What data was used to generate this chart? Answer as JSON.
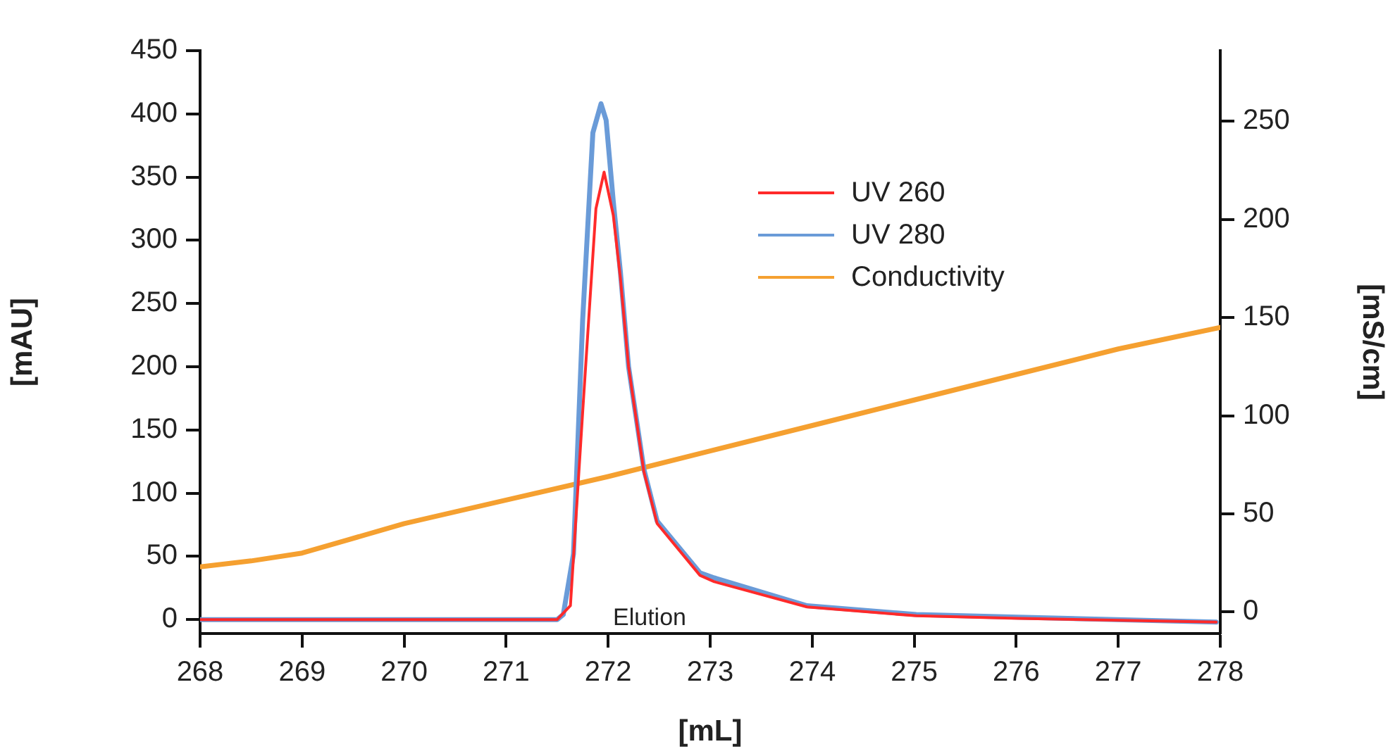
{
  "chart_data": {
    "type": "line",
    "xlabel": "[mL]",
    "ylabel": "[mAU]",
    "y2label": "[mS/cm]",
    "xlim": [
      268,
      278
    ],
    "xticks": [
      268,
      269,
      270,
      271,
      272,
      273,
      274,
      275,
      276,
      277,
      278
    ],
    "ylim": [
      -11,
      450
    ],
    "yticks": [
      0,
      50,
      100,
      150,
      200,
      250,
      300,
      350,
      400,
      450
    ],
    "y2lim": [
      -11,
      286
    ],
    "y2ticks": [
      0,
      50,
      100,
      150,
      200,
      250
    ],
    "grid": false,
    "legend": "top right",
    "marker": "none",
    "line_style": "solid",
    "annotations": [
      "Elution"
    ],
    "series": [
      {
        "name": "UV 260",
        "color": "#ff2a2a",
        "x": [
          268,
          271,
          271.5,
          271.63,
          271.75,
          271.88,
          271.96,
          272.05,
          272.12,
          272.2,
          272.35,
          272.48,
          272.9,
          273.04,
          273.95,
          275.02,
          276.02,
          277.96
        ],
        "values": [
          0,
          0,
          0,
          11,
          164,
          325,
          354,
          320,
          270,
          200,
          117,
          76,
          35,
          30,
          10,
          3,
          1,
          -2
        ]
      },
      {
        "name": "UV 280",
        "color": "#6a9bd8",
        "x": [
          268,
          271,
          271.5,
          271.56,
          271.66,
          271.75,
          271.85,
          271.93,
          271.98,
          272.05,
          272.12,
          272.2,
          272.35,
          272.48,
          272.9,
          273.04,
          273.95,
          275.02,
          276.02,
          277.96
        ],
        "values": [
          0,
          0,
          0,
          4,
          52,
          237,
          385,
          408,
          395,
          331,
          275,
          200,
          119,
          78,
          37,
          33,
          11,
          4,
          2,
          -2
        ]
      },
      {
        "name": "Conductivity",
        "color": "#f5a030",
        "axis": "y2",
        "x": [
          268,
          268.5,
          269,
          270,
          271,
          272,
          273,
          274,
          275,
          276,
          277,
          278
        ],
        "values": [
          23,
          26,
          30,
          45,
          57,
          69,
          82,
          95,
          108,
          121,
          134,
          145
        ]
      }
    ]
  }
}
